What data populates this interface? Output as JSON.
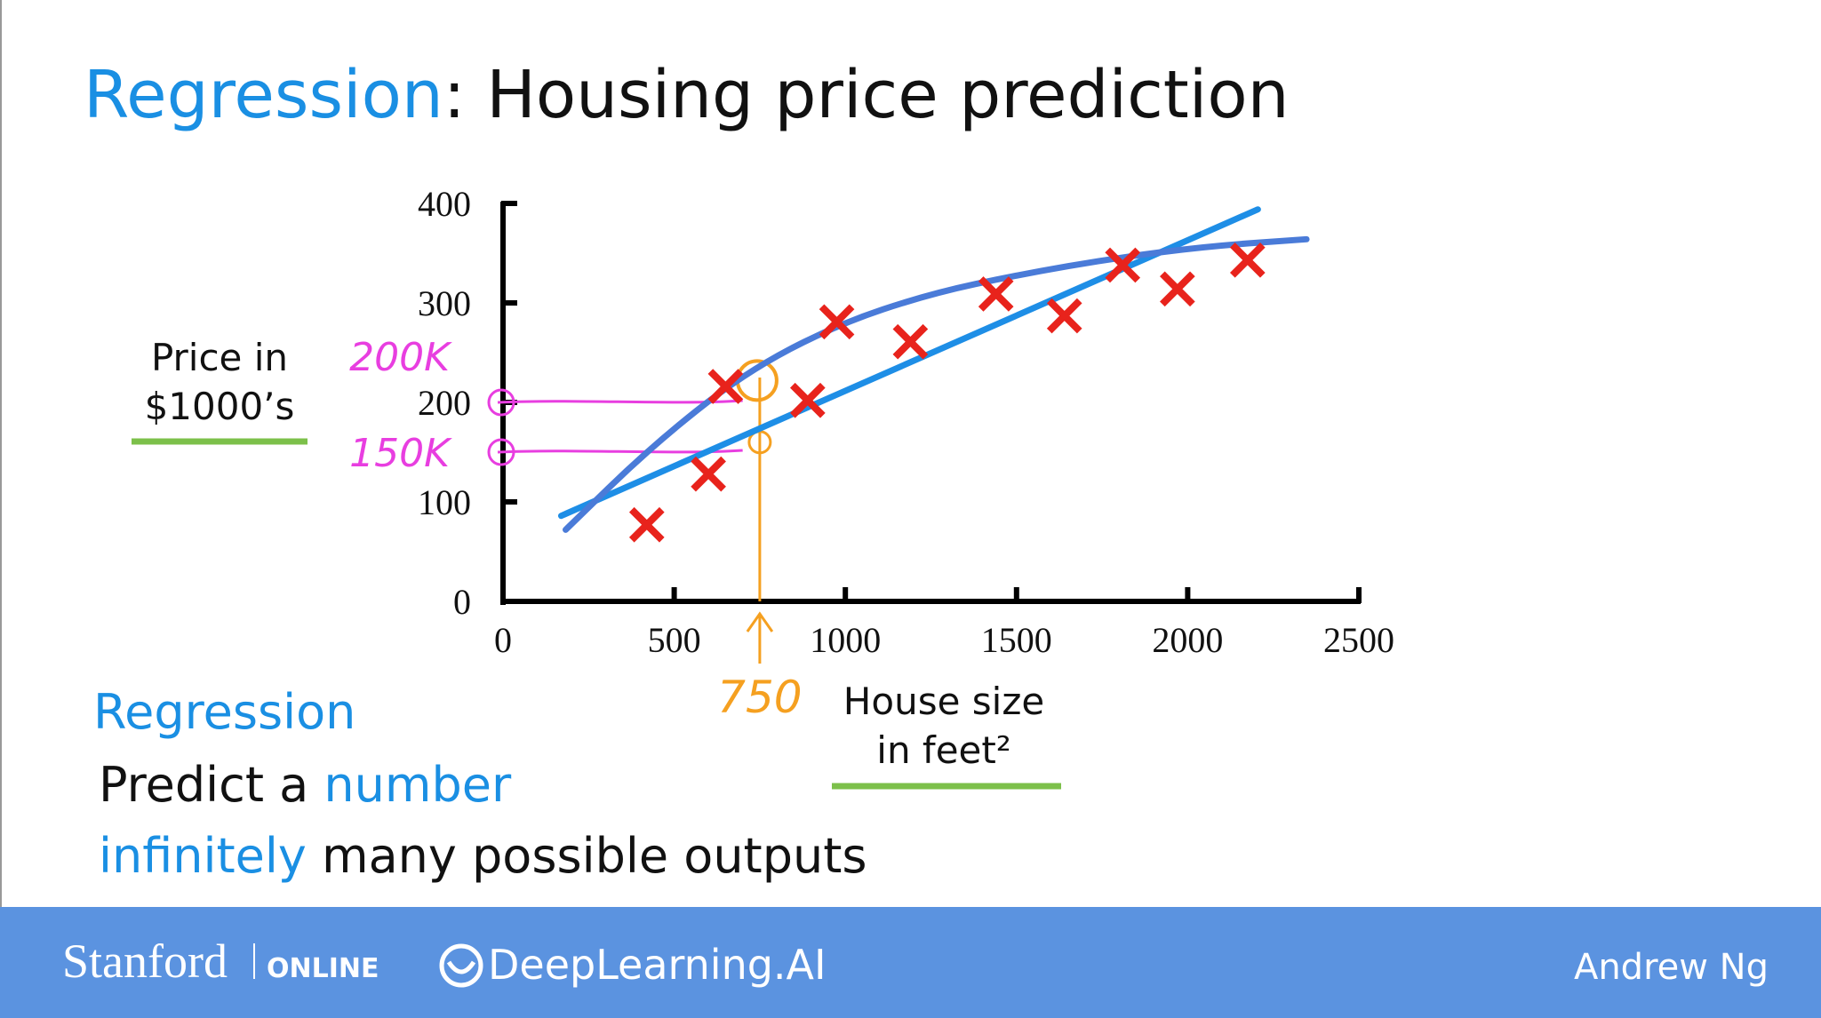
{
  "title": {
    "highlight": "Regression",
    "rest": ": Housing price prediction"
  },
  "chart_data": {
    "type": "scatter",
    "x": [
      420,
      600,
      650,
      890,
      975,
      1190,
      1440,
      1640,
      1810,
      1970,
      2175
    ],
    "values": [
      77,
      128,
      216,
      202,
      281,
      261,
      309,
      287,
      338,
      314,
      343
    ],
    "color": "#e8231c",
    "lines": [
      {
        "x": [
          170,
          2205
        ],
        "values": [
          86,
          394
        ],
        "color": "#1e8ee6"
      },
      {
        "x": [
          183,
          431,
          702,
          974,
          1245,
          1516,
          1787,
          2059,
          2347
        ],
        "values": [
          72,
          155,
          229,
          278,
          309,
          329,
          345,
          357,
          364
        ],
        "color": "#4a7bd8"
      }
    ],
    "xlim": [
      0,
      2500
    ],
    "ylim": [
      0,
      400
    ],
    "xticks": [
      0,
      500,
      1000,
      1500,
      2000,
      2500
    ],
    "yticks": [
      0,
      100,
      200,
      300,
      400
    ],
    "y_label": [
      "Price in",
      "$1000’s"
    ],
    "x_label": [
      "House size",
      "in feet²"
    ],
    "annotations": [
      {
        "text": "200K",
        "axis": "y",
        "value": 200,
        "color": "#e83ee0"
      },
      {
        "text": "150K",
        "axis": "y",
        "value": 150,
        "color": "#e83ee0"
      },
      {
        "text": "750",
        "axis": "x",
        "value": 750,
        "color": "#f5a020"
      }
    ]
  },
  "notes": {
    "heading": "Regression",
    "line1": [
      "Predict a ",
      "number"
    ],
    "line2": [
      "infinitely",
      " many possible outputs"
    ]
  },
  "footer": {
    "stanford": "Stanford",
    "online": "ONLINE",
    "deeplearning": "DeepLearning.AI",
    "author": "Andrew Ng"
  }
}
